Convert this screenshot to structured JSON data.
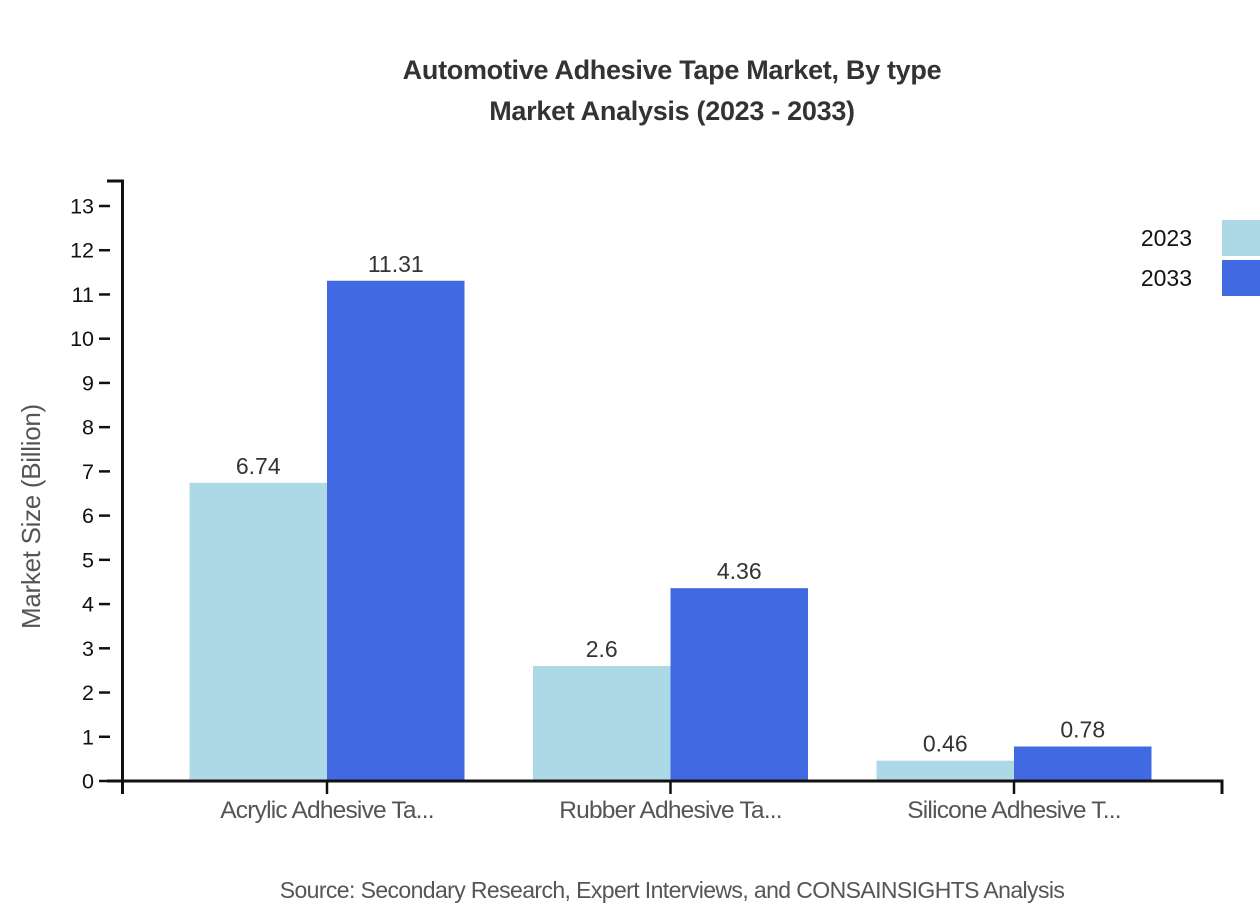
{
  "title": {
    "line1": "Automotive Adhesive Tape Market, By type",
    "line2": "Market Analysis (2023 - 2033)"
  },
  "source": {
    "text": "Source: Secondary Research, Expert Interviews, and CONSAINSIGHTS Analysis"
  },
  "chart_data": {
    "type": "bar",
    "title": "Automotive Adhesive Tape Market, By type Market Analysis (2023 - 2033)",
    "categories": [
      "Acrylic Adhesive Ta...",
      "Rubber Adhesive Ta...",
      "Silicone Adhesive T..."
    ],
    "series": [
      {
        "name": "2023",
        "color": "#ADD8E6",
        "values": [
          6.74,
          2.6,
          0.46
        ],
        "labels": [
          "6.74",
          "2.6",
          "0.46"
        ]
      },
      {
        "name": "2033",
        "color": "#4169E1",
        "values": [
          11.31,
          4.36,
          0.78
        ],
        "labels": [
          "11.31",
          "4.36",
          "0.78"
        ]
      }
    ],
    "xlabel": "",
    "ylabel": "Market Size (Billion)",
    "ylim": [
      0,
      13
    ],
    "yticks": [
      0,
      1,
      2,
      3,
      4,
      5,
      6,
      7,
      8,
      9,
      10,
      11,
      12,
      13
    ],
    "grid": false,
    "legend_position": "top-right",
    "bar_value_labels": true
  },
  "colors": {
    "axis": "#111111",
    "tick_text": "#111111",
    "value_label_text": "#333333",
    "category_text": "#555555",
    "title_text": "#333333"
  }
}
